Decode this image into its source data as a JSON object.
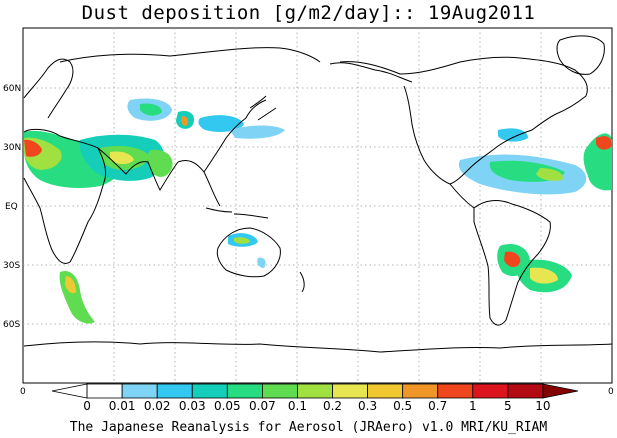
{
  "title": "Dust deposition [g/m2/day]:: 19Aug2011",
  "footer": "The Japanese Reanalysis for Aerosol (JRAero) v1.0 MRI/KU_RIAM",
  "map": {
    "lat_labels": [
      "60N",
      "30N",
      "EQ",
      "30S",
      "60S"
    ],
    "edge_labels": [
      "0",
      "0"
    ]
  },
  "colorbar": {
    "levels": [
      "0",
      "0.01",
      "0.02",
      "0.03",
      "0.05",
      "0.07",
      "0.1",
      "0.2",
      "0.3",
      "0.5",
      "0.7",
      "1",
      "5",
      "10"
    ],
    "colors": [
      "#ffffff",
      "#ffffff",
      "#7fd4f5",
      "#33c8f0",
      "#14ceb9",
      "#28dc82",
      "#5fdc50",
      "#a0e040",
      "#e6e650",
      "#f0c832",
      "#f09628",
      "#f0461e",
      "#dc141e",
      "#b40a14",
      "#820000"
    ]
  },
  "colors": {
    "coast": "#000000",
    "grid": "#9a9a9a",
    "frame": "#000000"
  }
}
